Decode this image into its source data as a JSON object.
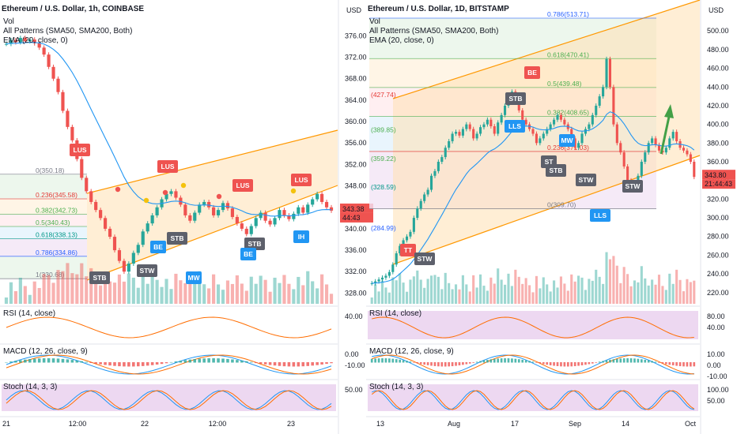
{
  "chart_data": [
    {
      "type": "candlestick",
      "title": "Ethereum / U.S. Dollar, 1h, COINBASE",
      "legend_lines": [
        "Vol",
        "All Patterns (SMA50, SMA200, Both)",
        "EMA (20, close, 0)"
      ],
      "currency": "USD",
      "ylim": [
        326,
        379
      ],
      "y_ticks": [
        "376.00",
        "372.00",
        "368.00",
        "364.00",
        "360.00",
        "356.00",
        "352.00",
        "348.00",
        "344.00",
        "340.00",
        "336.00",
        "332.00",
        "328.00"
      ],
      "x_ticks": [
        "21",
        "12:00",
        "22",
        "12:00",
        "23"
      ],
      "price_label": "343.38",
      "countdown_label": "44:43",
      "fib_levels": [
        {
          "label": "0(350.18)",
          "price": 350.18,
          "color": "#787b86"
        },
        {
          "label": "0.236(345.58)",
          "price": 345.58,
          "color": "#e53935"
        },
        {
          "label": "0.382(342.73)",
          "price": 342.73,
          "color": "#4caf50"
        },
        {
          "label": "0.5(340.43)",
          "price": 340.43,
          "color": "#4caf50"
        },
        {
          "label": "0.618(338.13)",
          "price": 338.13,
          "color": "#009688"
        },
        {
          "label": "0.786(334.86)",
          "price": 334.86,
          "color": "#2962ff"
        },
        {
          "label": "1(330.68)",
          "price": 330.68,
          "color": "#787b86"
        }
      ],
      "closes": [
        374.5,
        375.2,
        374.8,
        375.6,
        375.0,
        375.3,
        374.6,
        373.8,
        372.5,
        370.2,
        368.0,
        365.5,
        362.0,
        359.0,
        356.5,
        353.0,
        349.5,
        347.0,
        345.0,
        343.5,
        342.0,
        340.0,
        338.5,
        336.0,
        334.0,
        332.0,
        333.5,
        335.5,
        337.0,
        339.5,
        341.0,
        342.5,
        344.0,
        345.5,
        346.5,
        347.0,
        345.8,
        344.5,
        342.5,
        341.5,
        343.0,
        344.5,
        345.0,
        344.0,
        342.5,
        343.5,
        344.8,
        343.8,
        342.2,
        341.0,
        340.0,
        339.0,
        340.5,
        342.0,
        343.0,
        341.5,
        340.8,
        342.0,
        343.5,
        342.5,
        341.8,
        342.8,
        344.0,
        343.0,
        344.5,
        345.5,
        346.5,
        345.0,
        344.0,
        343.38
      ],
      "badges": [
        {
          "text": "LUS",
          "kind": "sell"
        },
        {
          "text": "LUS",
          "kind": "sell"
        },
        {
          "text": "LUS",
          "kind": "sell"
        },
        {
          "text": "LUS",
          "kind": "sell"
        },
        {
          "text": "STB",
          "kind": "neutral"
        },
        {
          "text": "STW",
          "kind": "neutral"
        },
        {
          "text": "BE",
          "kind": "buy"
        },
        {
          "text": "STB",
          "kind": "neutral"
        },
        {
          "text": "MW",
          "kind": "buy"
        },
        {
          "text": "STB",
          "kind": "neutral"
        },
        {
          "text": "BE",
          "kind": "buy"
        },
        {
          "text": "IH",
          "kind": "buy"
        }
      ],
      "indicators": [
        {
          "name": "RSI (14, close)",
          "ticks": [
            "40.00"
          ]
        },
        {
          "name": "MACD (12, 26, close, 9)",
          "ticks": [
            "0.00",
            "-10.00"
          ]
        },
        {
          "name": "Stoch (14, 3, 3)",
          "ticks": [
            "50.00"
          ]
        }
      ]
    },
    {
      "type": "candlestick",
      "title": "Ethereum / U.S. Dollar, 1D, BITSTAMP",
      "legend_lines": [
        "Vol",
        "All Patterns (SMA50, SMA200, Both)",
        "EMA (20, close, 0)"
      ],
      "currency": "USD",
      "ylim": [
        208,
        512
      ],
      "y_ticks": [
        "500.00",
        "480.00",
        "460.00",
        "440.00",
        "420.00",
        "400.00",
        "380.00",
        "360.00",
        "340.00",
        "320.00",
        "300.00",
        "280.00",
        "260.00",
        "240.00",
        "220.00"
      ],
      "x_ticks": [
        "13",
        "Aug",
        "17",
        "Sep",
        "14",
        "Oct"
      ],
      "price_label": "343.80",
      "countdown_label": "21:44:43",
      "fib_levels": [
        {
          "label": "0.786(513.71)",
          "price": 513.71,
          "color": "#2962ff"
        },
        {
          "label": "0.618(470.41)",
          "price": 470.41,
          "color": "#4caf50"
        },
        {
          "label": "0.5(439.48)",
          "price": 439.48,
          "color": "#4caf50"
        },
        {
          "label": "0.382(408.65)",
          "price": 408.65,
          "color": "#4caf50"
        },
        {
          "label": "0.236(371.03)",
          "price": 371.03,
          "color": "#e53935"
        },
        {
          "label": "0(309.70)",
          "price": 309.7,
          "color": "#787b86"
        }
      ],
      "side_levels": [
        {
          "label": "427.74",
          "price": 427.74,
          "color": "#e53935"
        },
        {
          "label": "389.85",
          "price": 389.85,
          "color": "#4caf50"
        },
        {
          "label": "359.22",
          "price": 359.22,
          "color": "#4caf50"
        },
        {
          "label": "328.59",
          "price": 328.59,
          "color": "#009688"
        },
        {
          "label": "284.99",
          "price": 284.99,
          "color": "#2962ff"
        }
      ],
      "closes": [
        230,
        232,
        234,
        236,
        238,
        242,
        250,
        262,
        270,
        276,
        280,
        285,
        300,
        310,
        318,
        325,
        330,
        345,
        350,
        360,
        365,
        375,
        382,
        390,
        392,
        388,
        395,
        400,
        395,
        385,
        390,
        397,
        400,
        405,
        398,
        390,
        402,
        410,
        420,
        430,
        435,
        425,
        415,
        405,
        400,
        395,
        390,
        380,
        385,
        390,
        395,
        400,
        405,
        410,
        405,
        400,
        395,
        385,
        375,
        380,
        390,
        395,
        400,
        410,
        420,
        430,
        440,
        470,
        440,
        400,
        380,
        370,
        355,
        340,
        330,
        335,
        345,
        360,
        370,
        380,
        385,
        378,
        372,
        370,
        375,
        385,
        392,
        382,
        375,
        372,
        368,
        360,
        343.8
      ],
      "badges": [
        {
          "text": "BE",
          "kind": "sell"
        },
        {
          "text": "TT",
          "kind": "sell"
        },
        {
          "text": "STW",
          "kind": "neutral"
        },
        {
          "text": "STB",
          "kind": "neutral"
        },
        {
          "text": "LLS",
          "kind": "buy"
        },
        {
          "text": "MW",
          "kind": "buy"
        },
        {
          "text": "ST",
          "kind": "neutral"
        },
        {
          "text": "STB",
          "kind": "neutral"
        },
        {
          "text": "STW",
          "kind": "neutral"
        },
        {
          "text": "STW",
          "kind": "neutral"
        },
        {
          "text": "LLS",
          "kind": "buy"
        }
      ],
      "indicators": [
        {
          "name": "RSI (14, close)",
          "ticks": [
            "80.00",
            "40.00"
          ]
        },
        {
          "name": "MACD (12, 26, close, 9)",
          "ticks": [
            "10.00",
            "0.00",
            "-10.00"
          ]
        },
        {
          "name": "Stoch (14, 3, 3)",
          "ticks": [
            "100.00",
            "50.00"
          ]
        }
      ]
    }
  ],
  "colors": {
    "up": "#26a69a",
    "down": "#ef5350",
    "ema": "#2196f3",
    "channel": "#ff9800",
    "stoch_bg": "#e1bee7",
    "sell_badge": "#ef5350",
    "buy_badge": "#2196f3",
    "neutral_badge": "#5d606b",
    "arrow": "#43a047"
  }
}
